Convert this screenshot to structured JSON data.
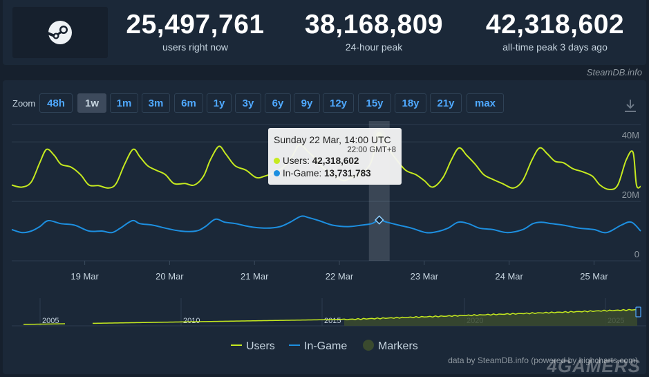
{
  "stats": [
    {
      "value": "25,497,761",
      "label": "users right now"
    },
    {
      "value": "38,168,809",
      "label": "24-hour peak"
    },
    {
      "value": "42,318,602",
      "label": "all-time peak 3 days ago"
    }
  ],
  "credit_top": "SteamDB.info",
  "zoom": {
    "label": "Zoom",
    "buttons": [
      "48h",
      "1w",
      "1m",
      "3m",
      "6m",
      "1y",
      "3y",
      "6y",
      "9y",
      "12y",
      "15y",
      "18y",
      "21y",
      "max"
    ],
    "active": "1w"
  },
  "tooltip": {
    "title": "Sunday 22 Mar, 14:00 UTC",
    "subtitle": "22:00 GMT+8",
    "users_label": "Users:",
    "users_value": "42,318,602",
    "ingame_label": "In-Game:",
    "ingame_value": "13,731,783"
  },
  "legend": [
    "Users",
    "In-Game",
    "Markers"
  ],
  "credit_bottom": "data by SteamDB.info (powered by highcharts.com)",
  "watermark": "4GAMERS",
  "colors": {
    "users": "#c6ea1f",
    "ingame": "#1d8fe0",
    "markers": "#3a4a2e",
    "accent": "#4fa9ff"
  },
  "chart_data": {
    "type": "line",
    "x_tick_labels": [
      "19 Mar",
      "20 Mar",
      "21 Mar",
      "22 Mar",
      "23 Mar",
      "24 Mar",
      "25 Mar"
    ],
    "y_tick_labels": [
      "0",
      "20M",
      "40M"
    ],
    "ylim": [
      0,
      44000000
    ],
    "x_unit": "days since 18 Mar 00:00",
    "xlim": [
      -0.36,
      7.05
    ],
    "series": [
      {
        "name": "Users",
        "points": [
          [
            -0.36,
            25.5
          ],
          [
            -0.24,
            24.8
          ],
          [
            -0.13,
            26.5
          ],
          [
            -0.03,
            33.0
          ],
          [
            0.05,
            37.5
          ],
          [
            0.14,
            35.5
          ],
          [
            0.22,
            32.5
          ],
          [
            0.34,
            31.5
          ],
          [
            0.45,
            29.0
          ],
          [
            0.55,
            25.5
          ],
          [
            0.66,
            25.3
          ],
          [
            0.78,
            24.5
          ],
          [
            0.87,
            26.0
          ],
          [
            0.97,
            32.5
          ],
          [
            1.07,
            37.5
          ],
          [
            1.15,
            35.0
          ],
          [
            1.24,
            32.0
          ],
          [
            1.34,
            30.5
          ],
          [
            1.45,
            29.0
          ],
          [
            1.55,
            26.0
          ],
          [
            1.68,
            26.0
          ],
          [
            1.79,
            25.5
          ],
          [
            1.9,
            28.5
          ],
          [
            1.98,
            34.0
          ],
          [
            2.08,
            38.5
          ],
          [
            2.16,
            36.0
          ],
          [
            2.27,
            32.0
          ],
          [
            2.4,
            30.5
          ],
          [
            2.52,
            28.0
          ],
          [
            2.62,
            28.5
          ],
          [
            2.72,
            29.5
          ],
          [
            2.84,
            31.5
          ],
          [
            2.94,
            35.0
          ],
          [
            3.03,
            39.0
          ],
          [
            3.14,
            36.5
          ],
          [
            3.23,
            34.0
          ],
          [
            3.3,
            31.5
          ],
          [
            3.4,
            29.5
          ],
          [
            3.54,
            27.0
          ],
          [
            3.64,
            28.0
          ],
          [
            3.76,
            29.5
          ],
          [
            3.87,
            33.0
          ],
          [
            3.97,
            42.3
          ],
          [
            4.06,
            38.5
          ],
          [
            4.16,
            34.5
          ],
          [
            4.28,
            30.5
          ],
          [
            4.4,
            29.0
          ],
          [
            4.5,
            27.0
          ],
          [
            4.6,
            24.8
          ],
          [
            4.72,
            28.0
          ],
          [
            4.82,
            34.0
          ],
          [
            4.91,
            38.0
          ],
          [
            5.0,
            35.5
          ],
          [
            5.1,
            32.5
          ],
          [
            5.2,
            29.0
          ],
          [
            5.3,
            27.5
          ],
          [
            5.42,
            26.0
          ],
          [
            5.55,
            24.5
          ],
          [
            5.66,
            27.0
          ],
          [
            5.77,
            34.0
          ],
          [
            5.86,
            38.0
          ],
          [
            5.95,
            36.0
          ],
          [
            6.04,
            33.5
          ],
          [
            6.14,
            33.0
          ],
          [
            6.25,
            31.0
          ],
          [
            6.36,
            30.0
          ],
          [
            6.48,
            28.5
          ],
          [
            6.57,
            25.5
          ],
          [
            6.68,
            24.0
          ],
          [
            6.78,
            25.5
          ],
          [
            6.88,
            34.0
          ],
          [
            6.96,
            36.5
          ],
          [
            7.0,
            25.5
          ],
          [
            7.05,
            25.0
          ]
        ]
      },
      {
        "name": "In-Game",
        "points": [
          [
            -0.36,
            10.5
          ],
          [
            -0.24,
            9.5
          ],
          [
            -0.13,
            10.0
          ],
          [
            -0.03,
            11.5
          ],
          [
            0.07,
            13.5
          ],
          [
            0.22,
            12.5
          ],
          [
            0.38,
            12.0
          ],
          [
            0.55,
            10.0
          ],
          [
            0.7,
            10.0
          ],
          [
            0.82,
            9.5
          ],
          [
            0.92,
            11.0
          ],
          [
            1.06,
            13.5
          ],
          [
            1.15,
            12.5
          ],
          [
            1.3,
            12.0
          ],
          [
            1.45,
            11.0
          ],
          [
            1.63,
            10.0
          ],
          [
            1.81,
            10.0
          ],
          [
            1.92,
            11.5
          ],
          [
            2.04,
            14.0
          ],
          [
            2.15,
            13.0
          ],
          [
            2.28,
            12.5
          ],
          [
            2.44,
            11.5
          ],
          [
            2.64,
            11.0
          ],
          [
            2.8,
            11.5
          ],
          [
            2.92,
            13.0
          ],
          [
            3.05,
            15.0
          ],
          [
            3.14,
            14.5
          ],
          [
            3.26,
            13.5
          ],
          [
            3.42,
            12.0
          ],
          [
            3.6,
            11.5
          ],
          [
            3.76,
            12.0
          ],
          [
            3.88,
            12.5
          ],
          [
            3.97,
            13.7
          ],
          [
            4.06,
            13.0
          ],
          [
            4.2,
            12.0
          ],
          [
            4.35,
            11.0
          ],
          [
            4.52,
            9.5
          ],
          [
            4.65,
            9.8
          ],
          [
            4.78,
            11.0
          ],
          [
            4.9,
            13.0
          ],
          [
            5.02,
            12.5
          ],
          [
            5.15,
            11.0
          ],
          [
            5.31,
            10.5
          ],
          [
            5.48,
            9.5
          ],
          [
            5.66,
            10.5
          ],
          [
            5.78,
            12.5
          ],
          [
            5.88,
            13.0
          ],
          [
            6.0,
            12.5
          ],
          [
            6.14,
            12.0
          ],
          [
            6.32,
            11.0
          ],
          [
            6.5,
            10.5
          ],
          [
            6.65,
            9.5
          ],
          [
            6.82,
            12.0
          ],
          [
            6.94,
            13.0
          ],
          [
            7.05,
            10.0
          ]
        ]
      }
    ],
    "highlight": {
      "x": 3.97,
      "users": 42318602,
      "ingame": 13731783
    },
    "navigator": {
      "labels": [
        "2005",
        "2010",
        "2015",
        "2020",
        "2025"
      ]
    }
  }
}
